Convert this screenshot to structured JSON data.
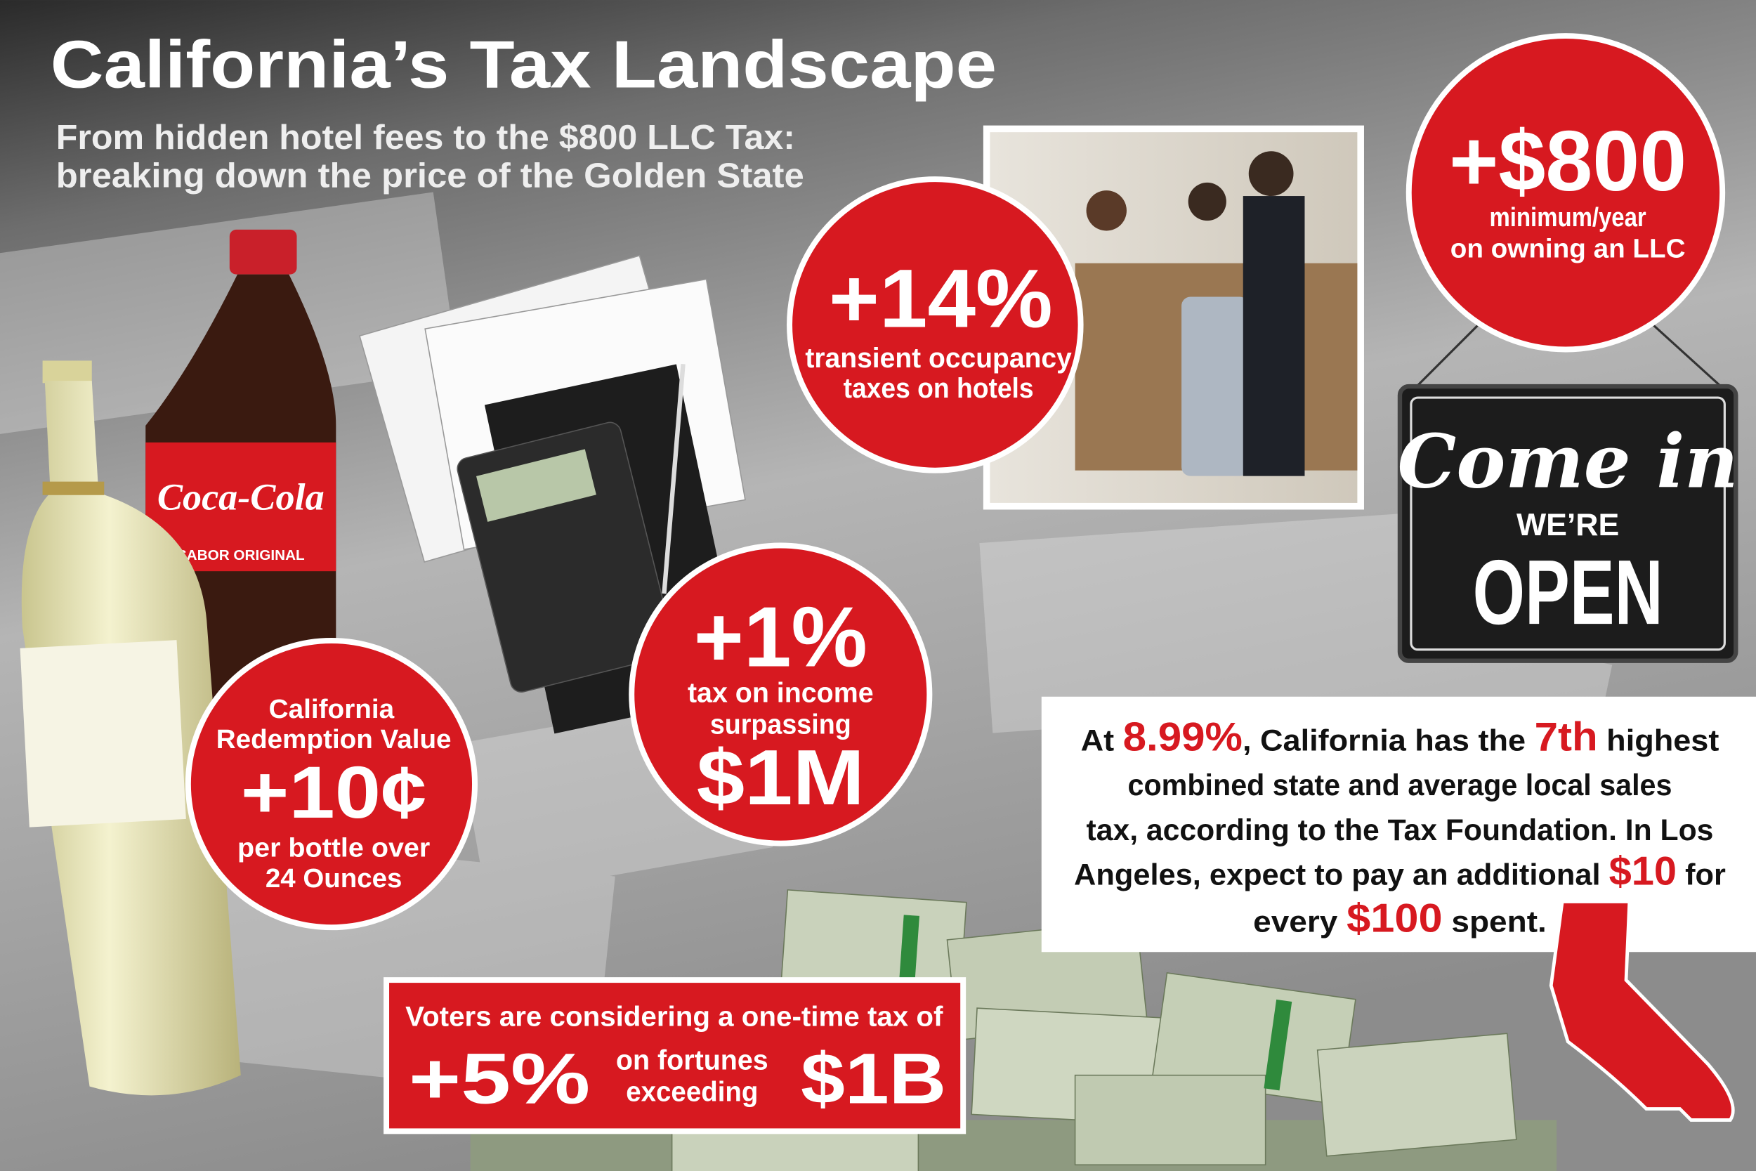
{
  "header": {
    "title": "California’s Tax Landscape",
    "subtitle": [
      "From hidden hotel fees to the $800 LLC Tax:",
      "breaking down the price of the Golden State"
    ]
  },
  "hotel": {
    "amount": "+14%",
    "lines": [
      "transient occupancy",
      "taxes on hotels"
    ]
  },
  "llc": {
    "amount": "+$800",
    "lines": [
      "minimum/year",
      "on owning an LLC"
    ]
  },
  "sign": {
    "script": "Come in",
    "small": "WE’RE",
    "big": "OPEN"
  },
  "income": {
    "amount": "+1%",
    "lines": [
      "tax on income",
      "surpassing"
    ],
    "threshold": "$1M"
  },
  "bottle": {
    "brand": "Coca-Cola",
    "tagline": "SABOR ORIGINAL"
  },
  "redemption": {
    "lines_top": [
      "California",
      "Redemption Value"
    ],
    "amount": "+10¢",
    "lines_bottom": [
      "per bottle over",
      "24 Ounces"
    ]
  },
  "wealth": {
    "lead": "Voters are considering a one-time tax of",
    "amount": "+5%",
    "middle": [
      "on fortunes",
      "exceeding"
    ],
    "threshold": "$1B"
  },
  "sales_note": {
    "highlight_color": "#d71920",
    "lines": [
      [
        {
          "text": "At "
        },
        {
          "text": "8.99%",
          "highlight": true
        },
        {
          "text": ", California has the "
        },
        {
          "text": "7th",
          "highlight": true
        },
        {
          "text": " highest"
        }
      ],
      [
        {
          "text": "combined state and average local sales"
        }
      ],
      [
        {
          "text": "tax, according to the Tax Foundation. In Los"
        }
      ],
      [
        {
          "text": "Angeles, expect to pay an additional "
        },
        {
          "text": "$10",
          "highlight": true
        },
        {
          "text": " for"
        }
      ],
      [
        {
          "text": "every "
        },
        {
          "text": "$100",
          "highlight": true
        },
        {
          "text": " spent."
        }
      ]
    ]
  }
}
